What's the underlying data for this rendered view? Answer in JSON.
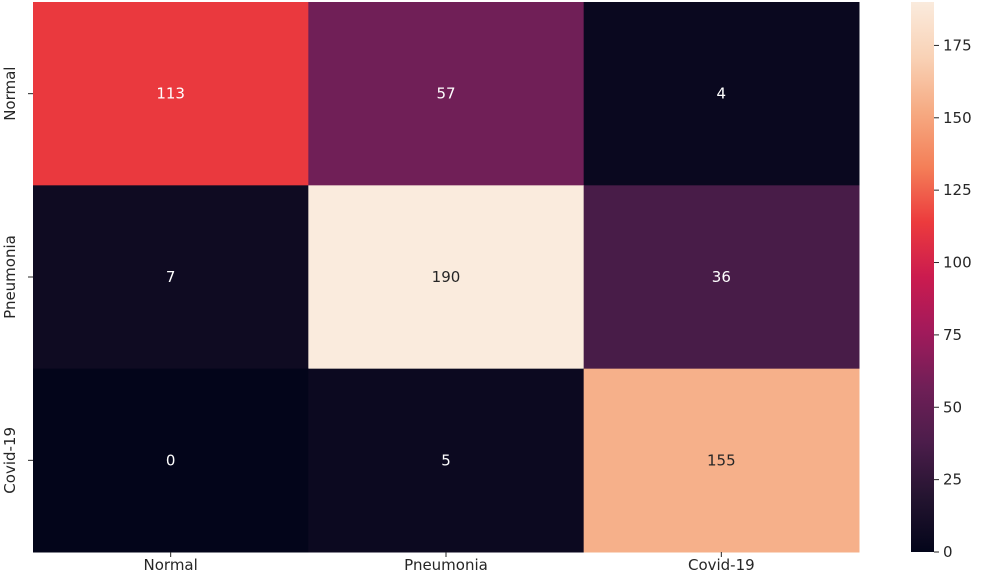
{
  "chart_data": {
    "type": "heatmap",
    "title": "",
    "xlabel": "",
    "ylabel": "",
    "x_categories": [
      "Normal",
      "Pneumonia",
      "Covid-19"
    ],
    "y_categories": [
      "Normal",
      "Pneumonia",
      "Covid-19"
    ],
    "matrix": [
      [
        113,
        57,
        4
      ],
      [
        7,
        190,
        36
      ],
      [
        0,
        5,
        155
      ]
    ],
    "colorbar": {
      "range": [
        0,
        190
      ],
      "ticks": [
        0,
        25,
        50,
        75,
        100,
        125,
        150,
        175
      ],
      "colormap": "rocket"
    },
    "annotation_colors": {
      "on_dark": "#ffffff",
      "on_light": "#262626"
    },
    "colormap_stops": [
      "#03051a",
      "#241430",
      "#4c1d4b",
      "#701f57",
      "#a11a5b",
      "#cb1b4f",
      "#ec3b3d",
      "#f47f58",
      "#f6aa82",
      "#f9d2b6",
      "#faebdd"
    ]
  }
}
